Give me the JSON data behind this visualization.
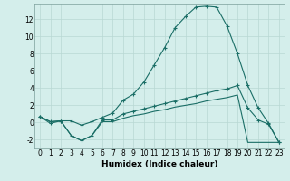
{
  "xlabel": "Humidex (Indice chaleur)",
  "ylabel": "",
  "background_color": "#d4eeeb",
  "grid_color": "#b8d8d4",
  "line_color": "#1a6e66",
  "xlim": [
    -0.5,
    23.5
  ],
  "ylim": [
    -3,
    13.8
  ],
  "xticks": [
    0,
    1,
    2,
    3,
    4,
    5,
    6,
    7,
    8,
    9,
    10,
    11,
    12,
    13,
    14,
    15,
    16,
    17,
    18,
    19,
    20,
    21,
    22,
    23
  ],
  "yticks": [
    -2,
    0,
    2,
    4,
    6,
    8,
    10,
    12
  ],
  "series1_x": [
    0,
    1,
    2,
    3,
    4,
    5,
    6,
    7,
    8,
    9,
    10,
    11,
    12,
    13,
    14,
    15,
    16,
    17,
    18,
    19,
    20,
    21,
    22,
    23
  ],
  "series1_y": [
    0.7,
    -0.1,
    0.2,
    0.2,
    -0.3,
    0.1,
    0.6,
    1.1,
    2.6,
    3.3,
    4.7,
    6.7,
    8.7,
    11.0,
    12.3,
    13.4,
    13.5,
    13.4,
    11.2,
    8.0,
    4.3,
    1.7,
    -0.1,
    -2.3
  ],
  "series2_x": [
    0,
    1,
    2,
    3,
    4,
    5,
    6,
    7,
    8,
    9,
    10,
    11,
    12,
    13,
    14,
    15,
    16,
    17,
    18,
    19,
    20,
    21,
    22,
    23
  ],
  "series2_y": [
    0.7,
    0.1,
    0.2,
    -1.5,
    -2.1,
    -1.5,
    0.3,
    0.3,
    1.0,
    1.3,
    1.6,
    1.9,
    2.2,
    2.5,
    2.8,
    3.1,
    3.4,
    3.7,
    3.9,
    4.3,
    1.7,
    0.3,
    -0.2,
    -2.3
  ],
  "series3_x": [
    0,
    1,
    2,
    3,
    4,
    5,
    6,
    7,
    8,
    9,
    10,
    11,
    12,
    13,
    14,
    15,
    16,
    17,
    18,
    19,
    20,
    21,
    22,
    23
  ],
  "series3_y": [
    0.7,
    0.1,
    0.2,
    -1.5,
    -2.1,
    -1.5,
    0.1,
    0.1,
    0.5,
    0.8,
    1.0,
    1.3,
    1.5,
    1.8,
    2.0,
    2.2,
    2.5,
    2.7,
    2.9,
    3.2,
    -2.3,
    -2.3,
    -2.3,
    -2.3
  ],
  "tick_fontsize": 5.5,
  "xlabel_fontsize": 6.5
}
